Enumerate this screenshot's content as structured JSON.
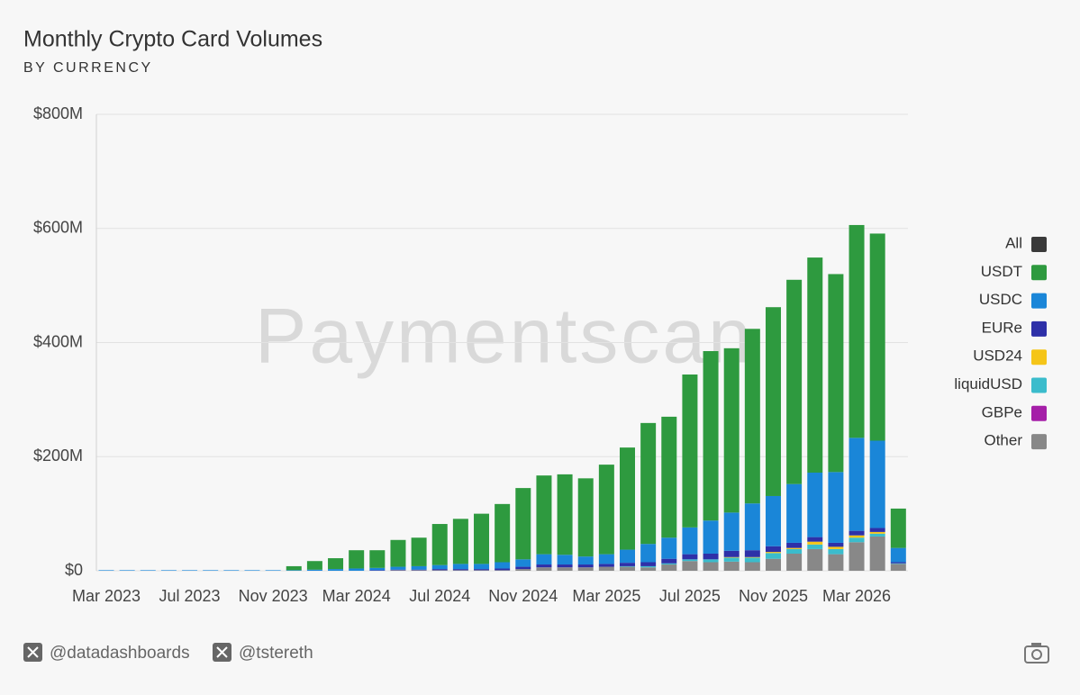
{
  "chart_data": {
    "type": "stacked-bar",
    "title": "Monthly Crypto Card Volumes",
    "subtitle": "BY CURRENCY",
    "watermark": "Paymentscan",
    "footer": [
      "@datadashboards",
      "@tstereth"
    ],
    "categories": [
      "Mar 2023",
      null,
      null,
      null,
      "Jul 2023",
      null,
      null,
      null,
      "Nov 2023",
      null,
      null,
      null,
      "Mar 2024",
      null,
      null,
      null,
      "Jul 2024",
      null,
      null,
      null,
      "Nov 2024",
      null,
      null,
      null,
      "Mar 2025",
      null,
      null,
      null,
      "Jul 2025",
      null,
      null,
      null,
      "Nov 2025",
      null,
      null,
      null,
      "Mar 2026",
      null,
      null
    ],
    "ylim": [
      0,
      800
    ],
    "yticks": [
      {
        "value": 0,
        "label": "$0"
      },
      {
        "value": 200,
        "label": "$200M"
      },
      {
        "value": 400,
        "label": "$400M"
      },
      {
        "value": 600,
        "label": "$600M"
      },
      {
        "value": 800,
        "label": "$800M"
      }
    ],
    "grid": true,
    "legend": "right",
    "series": [
      {
        "name": "All",
        "color": "#3a3a3a",
        "values": [
          null,
          null,
          null,
          null,
          null,
          null,
          null,
          null,
          null,
          null,
          null,
          null,
          null,
          null,
          null,
          null,
          null,
          null,
          null,
          null,
          null,
          null,
          null,
          null,
          null,
          null,
          null,
          null,
          null,
          null,
          null,
          null,
          null,
          null,
          null,
          null,
          null,
          null,
          null
        ]
      },
      {
        "name": "USDT",
        "color": "#2e9a3f",
        "values": [
          0,
          0,
          0,
          0,
          0,
          0,
          0,
          0,
          0,
          7,
          15,
          19,
          32,
          31,
          47,
          50,
          72,
          79,
          88,
          102,
          125,
          138,
          141,
          137,
          157,
          179,
          212,
          212,
          268,
          297,
          288,
          306,
          331,
          358,
          377,
          347,
          373,
          363,
          69
        ]
      },
      {
        "name": "USDC",
        "color": "#1a86d8",
        "values": [
          1,
          1,
          1,
          1,
          1,
          1,
          1,
          1,
          1,
          1,
          2,
          3,
          4,
          4,
          5,
          6,
          7,
          9,
          9,
          11,
          13,
          18,
          17,
          14,
          17,
          23,
          32,
          37,
          47,
          58,
          67,
          82,
          88,
          103,
          113,
          124,
          163,
          153,
          25
        ]
      },
      {
        "name": "EURe",
        "color": "#2e30a8",
        "values": [
          0,
          0,
          0,
          0,
          0,
          0,
          0,
          0,
          0,
          0,
          0,
          0,
          0,
          1,
          1,
          1,
          2,
          2,
          2,
          3,
          4,
          5,
          5,
          5,
          5,
          6,
          7,
          8,
          9,
          10,
          11,
          12,
          10,
          9,
          8,
          7,
          8,
          7,
          2
        ]
      },
      {
        "name": "USD24",
        "color": "#f5c518",
        "values": [
          0,
          0,
          0,
          0,
          0,
          0,
          0,
          0,
          0,
          0,
          0,
          0,
          0,
          0,
          0,
          0,
          0,
          0,
          0,
          0,
          0,
          0,
          0,
          0,
          0,
          0,
          0,
          0,
          0,
          0,
          1,
          1,
          2,
          2,
          5,
          4,
          4,
          3,
          0
        ]
      },
      {
        "name": "liquidUSD",
        "color": "#3bbccc",
        "values": [
          0,
          0,
          0,
          0,
          0,
          0,
          0,
          0,
          0,
          0,
          0,
          0,
          0,
          0,
          0,
          0,
          0,
          0,
          0,
          0,
          0,
          0,
          0,
          0,
          0,
          1,
          2,
          2,
          3,
          5,
          7,
          8,
          10,
          8,
          8,
          9,
          8,
          5,
          1
        ]
      },
      {
        "name": "GBPe",
        "color": "#a51fa8",
        "values": [
          0,
          0,
          0,
          0,
          0,
          0,
          0,
          0,
          0,
          0,
          0,
          0,
          0,
          0,
          0,
          0,
          0,
          0,
          0,
          0,
          0,
          0,
          0,
          0,
          0,
          0,
          0,
          0,
          0,
          0,
          0,
          0,
          0,
          0,
          0,
          0,
          0,
          0,
          0
        ]
      },
      {
        "name": "Other",
        "color": "#888888",
        "values": [
          0,
          0,
          0,
          0,
          0,
          0,
          0,
          0,
          0,
          0,
          0,
          0,
          0,
          0,
          1,
          1,
          1,
          1,
          1,
          1,
          3,
          6,
          6,
          6,
          7,
          7,
          6,
          11,
          17,
          15,
          16,
          15,
          21,
          30,
          38,
          29,
          50,
          60,
          12
        ]
      }
    ]
  }
}
